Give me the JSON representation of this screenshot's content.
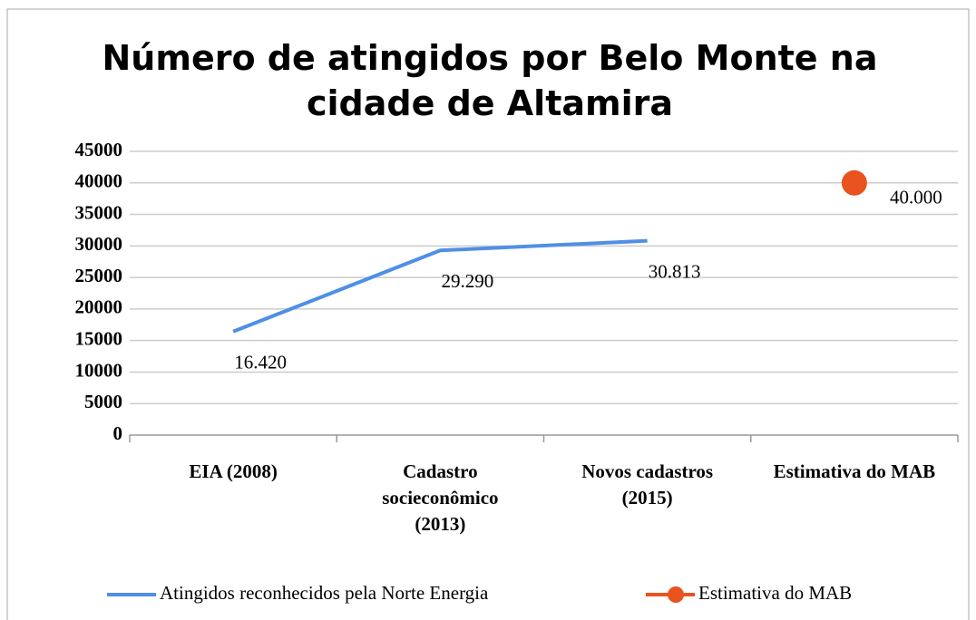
{
  "chart_data": {
    "type": "line",
    "title": "Número de atingidos por Belo Monte na\ncidade de Altamira",
    "categories": [
      "EIA (2008)",
      "Cadastro\nsocieconômico\n(2013)",
      "Novos cadastros\n(2015)",
      "Estimativa do MAB"
    ],
    "series": [
      {
        "name": "Atingidos reconhecidos pela Norte Energia",
        "color": "#4f8fe6",
        "marker": "none",
        "values": [
          16420,
          29290,
          30813,
          null
        ],
        "value_labels": [
          "16.420",
          "29.290",
          "30.813",
          null
        ]
      },
      {
        "name": "Estimativa do MAB",
        "color": "#e8531f",
        "marker": "circle",
        "values": [
          null,
          null,
          null,
          40000
        ],
        "value_labels": [
          null,
          null,
          null,
          "40.000"
        ]
      }
    ],
    "ylim": [
      0,
      45000
    ],
    "yticks": [
      0,
      5000,
      10000,
      15000,
      20000,
      25000,
      30000,
      35000,
      40000,
      45000
    ],
    "grid": true,
    "legend": "bottom"
  }
}
